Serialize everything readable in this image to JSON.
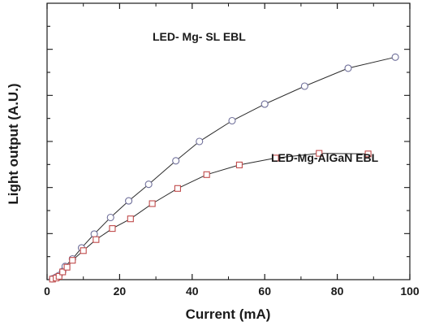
{
  "chart_data": {
    "type": "line",
    "xlabel": "Current (mA)",
    "ylabel": "Light output (A.U.)",
    "xlim": [
      0,
      100
    ],
    "ylim": [
      0,
      1.0
    ],
    "x_ticks": [
      0,
      20,
      40,
      60,
      80,
      100
    ],
    "y_tick_labels_shown": false,
    "grid": false,
    "series": [
      {
        "name": "LED- Mg- SL EBL",
        "marker": "circle",
        "color": "#6f6f9a",
        "x": [
          1.5,
          2.5,
          3.3,
          4.3,
          5.0,
          7.0,
          9.5,
          13.0,
          17.5,
          22.5,
          28.0,
          35.5,
          42.0,
          51.0,
          60.0,
          71.0,
          83.0,
          96.0
        ],
        "y": [
          0.003,
          0.009,
          0.015,
          0.03,
          0.048,
          0.075,
          0.115,
          0.165,
          0.225,
          0.285,
          0.345,
          0.43,
          0.5,
          0.575,
          0.635,
          0.7,
          0.765,
          0.805
        ]
      },
      {
        "name": "LED-Mg-AlGaN EBL",
        "marker": "square",
        "color": "#c04a4a",
        "x": [
          1.5,
          2.5,
          3.3,
          4.3,
          5.5,
          7.0,
          10.0,
          13.5,
          18.0,
          23.0,
          29.0,
          36.0,
          44.0,
          53.0,
          63.0,
          75.0,
          88.5
        ],
        "y": [
          0.002,
          0.006,
          0.012,
          0.028,
          0.045,
          0.07,
          0.105,
          0.145,
          0.185,
          0.22,
          0.275,
          0.33,
          0.38,
          0.415,
          0.44,
          0.457,
          0.455
        ]
      }
    ],
    "annotations": [
      {
        "text": "LED- Mg- SL EBL",
        "series": 0
      },
      {
        "text": "LED-Mg-AlGaN EBL",
        "series": 1
      }
    ]
  }
}
